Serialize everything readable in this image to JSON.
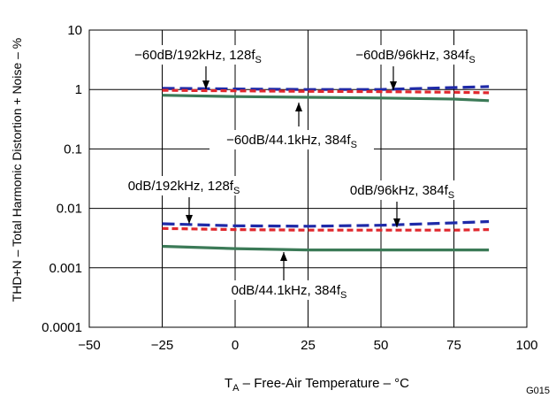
{
  "chart_data": {
    "type": "line",
    "xlabel_main": "T",
    "xlabel_sub": "A",
    "xlabel_rest": " – Free-Air Temperature – °C",
    "ylabel": "THD+N – Total Harmonic Distortion + Noise – %",
    "figure_id": "G015",
    "xlim": [
      -50,
      100
    ],
    "ylim": [
      0.0001,
      10
    ],
    "y_scale": "log",
    "grid": true,
    "x_ticks": [
      "−50",
      "−25",
      "0",
      "25",
      "50",
      "75",
      "100"
    ],
    "x_tick_values": [
      -50,
      -25,
      0,
      25,
      50,
      75,
      100
    ],
    "y_ticks": [
      "10",
      "1",
      "0.1",
      "0.01",
      "0.001",
      "0.0001"
    ],
    "y_tick_values": [
      10,
      1,
      0.1,
      0.01,
      0.001,
      0.0001
    ],
    "series": [
      {
        "label_main": "−60dB/192kHz, 128f",
        "label_sub": "S",
        "color": "#1f2aa8",
        "dash": "long",
        "x": [
          -25,
          0,
          25,
          50,
          75,
          87
        ],
        "y": [
          1.05,
          1.02,
          1.0,
          1.0,
          1.08,
          1.12
        ]
      },
      {
        "label_main": "−60dB/96kHz, 384f",
        "label_sub": "S",
        "color": "#e0282e",
        "dash": "short",
        "x": [
          -25,
          0,
          25,
          50,
          75,
          87
        ],
        "y": [
          0.97,
          0.95,
          0.93,
          0.92,
          0.9,
          0.88
        ]
      },
      {
        "label_main": "−60dB/44.1kHz, 384f",
        "label_sub": "S",
        "color": "#3b7a57",
        "dash": "solid",
        "x": [
          -25,
          0,
          25,
          50,
          75,
          87
        ],
        "y": [
          0.8,
          0.76,
          0.74,
          0.72,
          0.69,
          0.65
        ]
      },
      {
        "label_main": "0dB/192kHz, 128f",
        "label_sub": "S",
        "color": "#1f2aa8",
        "dash": "long",
        "x": [
          -25,
          0,
          25,
          50,
          75,
          87
        ],
        "y": [
          0.0055,
          0.0051,
          0.005,
          0.0052,
          0.0057,
          0.006
        ]
      },
      {
        "label_main": "0dB/96kHz, 384f",
        "label_sub": "S",
        "color": "#e0282e",
        "dash": "short",
        "x": [
          -25,
          0,
          25,
          50,
          75,
          87
        ],
        "y": [
          0.0046,
          0.0044,
          0.0043,
          0.0043,
          0.0043,
          0.0044
        ]
      },
      {
        "label_main": "0dB/44.1kHz, 384f",
        "label_sub": "S",
        "color": "#3b7a57",
        "dash": "solid",
        "x": [
          -25,
          0,
          25,
          50,
          75,
          87
        ],
        "y": [
          0.0023,
          0.0021,
          0.002,
          0.002,
          0.002,
          0.002
        ]
      }
    ]
  }
}
